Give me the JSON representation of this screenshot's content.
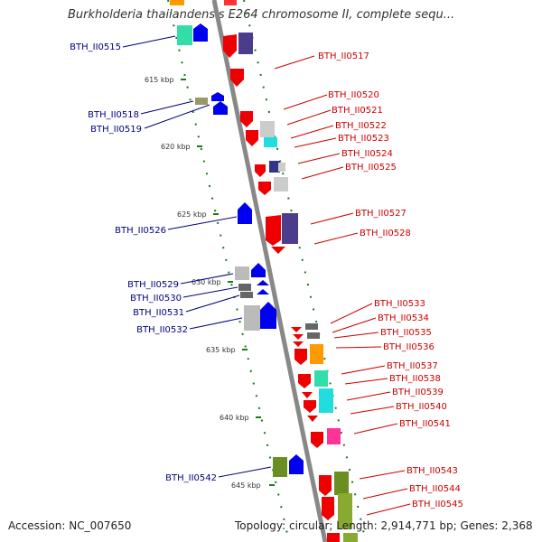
{
  "title": "Burkholderia thailandensis E264 chromosome II, complete sequ...",
  "footer": {
    "accession": "Accession: NC_007650",
    "topology": "Topology: circular; Length: 2,914,771 bp; Genes: 2,368"
  },
  "colors": {
    "forward_label": "#cc0000",
    "reverse_label": "#00007f",
    "axis": "#999999",
    "ticks": "#1a7a1a"
  },
  "kbp_ticks": [
    "615 kbp",
    "620 kbp",
    "625 kbp",
    "630 kbp",
    "635 kbp",
    "640 kbp",
    "645 kbp"
  ],
  "left_genes": [
    "BTH_II0515",
    "BTH_II0518",
    "BTH_II0519",
    "BTH_II0526",
    "BTH_II0529",
    "BTH_II0530",
    "BTH_II0531",
    "BTH_II0532",
    "BTH_II0542"
  ],
  "right_genes": [
    "BTH_II0517",
    "BTH_II0520",
    "BTH_II0521",
    "BTH_II0522",
    "BTH_II0523",
    "BTH_II0524",
    "BTH_II0525",
    "BTH_II0527",
    "BTH_II0528",
    "BTH_II0533",
    "BTH_II0534",
    "BTH_II0535",
    "BTH_II0536",
    "BTH_II0537",
    "BTH_II0538",
    "BTH_II0539",
    "BTH_II0540",
    "BTH_II0541",
    "BTH_II0543",
    "BTH_II0544",
    "BTH_II0545"
  ]
}
